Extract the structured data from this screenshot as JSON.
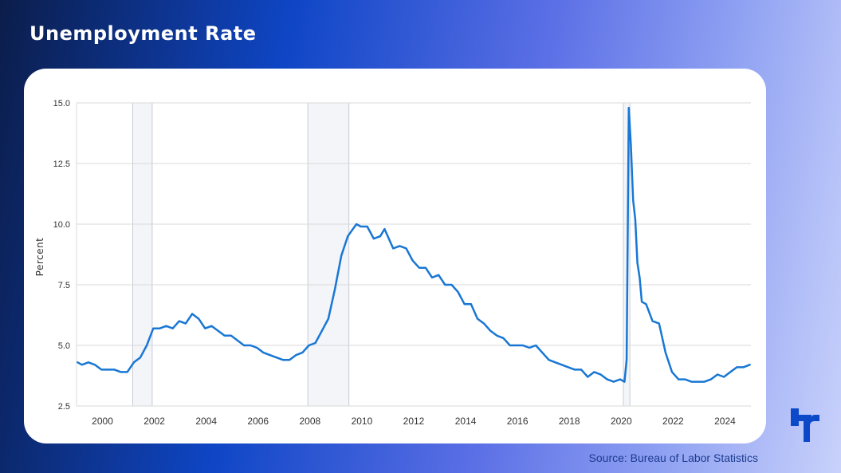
{
  "page": {
    "title": "Unemployment Rate",
    "source": "Source: Bureau of Labor Statistics",
    "logo_icon": "company-logo-icon"
  },
  "chart_data": {
    "type": "line",
    "title": "Unemployment Rate",
    "xlabel": "",
    "ylabel": "Percent",
    "xlim": [
      "1999-01",
      "2024-12"
    ],
    "ylim": [
      2.5,
      15.0
    ],
    "yticks": [
      "2.5",
      "5.0",
      "7.5",
      "10.0",
      "12.5",
      "15.0"
    ],
    "xticks": [
      "2000",
      "2002",
      "2004",
      "2006",
      "2008",
      "2010",
      "2012",
      "2014",
      "2016",
      "2018",
      "2020",
      "2022",
      "2024"
    ],
    "grid": true,
    "recessions": [
      {
        "start": "2001-03",
        "end": "2001-11"
      },
      {
        "start": "2007-12",
        "end": "2009-06"
      },
      {
        "start": "2020-02",
        "end": "2020-04"
      }
    ],
    "colors": {
      "line": "#1877d4",
      "recession": "#f3f5f9",
      "recession_border": "#c8ccd4",
      "grid": "#d9d9d9"
    },
    "series": [
      {
        "x": [
          "1999-01",
          "1999-03",
          "1999-06",
          "1999-09",
          "1999-12",
          "2000-03",
          "2000-06",
          "2000-09",
          "2000-12",
          "2001-03",
          "2001-06",
          "2001-09",
          "2001-12",
          "2002-03",
          "2002-06",
          "2002-09",
          "2002-12",
          "2003-03",
          "2003-06",
          "2003-09",
          "2003-12",
          "2004-03",
          "2004-06",
          "2004-09",
          "2004-12",
          "2005-03",
          "2005-06",
          "2005-09",
          "2005-12",
          "2006-03",
          "2006-06",
          "2006-09",
          "2006-12",
          "2007-03",
          "2007-06",
          "2007-09",
          "2007-12",
          "2008-03",
          "2008-06",
          "2008-09",
          "2008-12",
          "2009-03",
          "2009-06",
          "2009-10",
          "2009-12",
          "2010-03",
          "2010-06",
          "2010-09",
          "2010-11",
          "2011-03",
          "2011-06",
          "2011-09",
          "2011-12",
          "2012-03",
          "2012-06",
          "2012-09",
          "2012-12",
          "2013-03",
          "2013-06",
          "2013-09",
          "2013-12",
          "2014-03",
          "2014-06",
          "2014-09",
          "2014-12",
          "2015-03",
          "2015-06",
          "2015-09",
          "2015-12",
          "2016-03",
          "2016-06",
          "2016-09",
          "2016-12",
          "2017-03",
          "2017-06",
          "2017-09",
          "2017-12",
          "2018-03",
          "2018-06",
          "2018-09",
          "2018-12",
          "2019-03",
          "2019-06",
          "2019-09",
          "2019-12",
          "2020-02",
          "2020-03",
          "2020-04",
          "2020-05",
          "2020-06",
          "2020-07",
          "2020-08",
          "2020-09",
          "2020-10",
          "2020-12",
          "2021-03",
          "2021-06",
          "2021-09",
          "2021-12",
          "2022-03",
          "2022-06",
          "2022-09",
          "2022-12",
          "2023-03",
          "2023-06",
          "2023-09",
          "2023-12",
          "2024-03",
          "2024-06",
          "2024-09",
          "2024-12"
        ],
        "values": [
          4.3,
          4.2,
          4.3,
          4.2,
          4.0,
          4.0,
          4.0,
          3.9,
          3.9,
          4.3,
          4.5,
          5.0,
          5.7,
          5.7,
          5.8,
          5.7,
          6.0,
          5.9,
          6.3,
          6.1,
          5.7,
          5.8,
          5.6,
          5.4,
          5.4,
          5.2,
          5.0,
          5.0,
          4.9,
          4.7,
          4.6,
          4.5,
          4.4,
          4.4,
          4.6,
          4.7,
          5.0,
          5.1,
          5.6,
          6.1,
          7.3,
          8.7,
          9.5,
          10.0,
          9.9,
          9.9,
          9.4,
          9.5,
          9.8,
          9.0,
          9.1,
          9.0,
          8.5,
          8.2,
          8.2,
          7.8,
          7.9,
          7.5,
          7.5,
          7.2,
          6.7,
          6.7,
          6.1,
          5.9,
          5.6,
          5.4,
          5.3,
          5.0,
          5.0,
          5.0,
          4.9,
          5.0,
          4.7,
          4.4,
          4.3,
          4.2,
          4.1,
          4.0,
          4.0,
          3.7,
          3.9,
          3.8,
          3.6,
          3.5,
          3.6,
          3.5,
          4.4,
          14.8,
          13.2,
          11.0,
          10.2,
          8.4,
          7.8,
          6.8,
          6.7,
          6.0,
          5.9,
          4.7,
          3.9,
          3.6,
          3.6,
          3.5,
          3.5,
          3.5,
          3.6,
          3.8,
          3.7,
          3.9,
          4.1,
          4.1,
          4.2
        ]
      }
    ]
  }
}
